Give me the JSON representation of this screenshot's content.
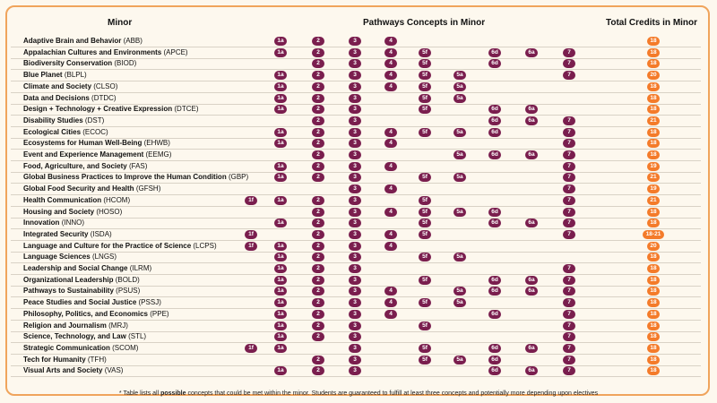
{
  "headers": {
    "minor": "Minor",
    "concepts": "Pathways Concepts in Minor",
    "credits": "Total Credits in Minor"
  },
  "rows": [
    {
      "name": "Adaptive Brain and Behavior",
      "abbr": "(ABB)",
      "concepts": [
        "1a",
        "2",
        "3",
        "4"
      ],
      "credits": "18"
    },
    {
      "name": "Appalachian Cultures and Environments",
      "abbr": "(APCE)",
      "concepts": [
        "1a",
        "2",
        "3",
        "4",
        "5f",
        "6d",
        "6a",
        "7"
      ],
      "credits": "18"
    },
    {
      "name": "Biodiversity Conservation",
      "abbr": "(BIOD)",
      "concepts": [
        "2",
        "3",
        "4",
        "5f",
        "6d",
        "7"
      ],
      "credits": "18"
    },
    {
      "name": "Blue Planet",
      "abbr": "(BLPL)",
      "concepts": [
        "1a",
        "2",
        "3",
        "4",
        "5f",
        "5a",
        "7"
      ],
      "credits": "20"
    },
    {
      "name": "Climate and Society",
      "abbr": "(CLSO)",
      "concepts": [
        "1a",
        "2",
        "3",
        "4",
        "5f",
        "5a"
      ],
      "credits": "18"
    },
    {
      "name": "Data and Decisions",
      "abbr": "(DTDC)",
      "concepts": [
        "1a",
        "2",
        "3",
        "5f",
        "5a"
      ],
      "credits": "18"
    },
    {
      "name": "Design + Technology + Creative Expression",
      "abbr": "(DTCE)",
      "concepts": [
        "1a",
        "2",
        "3",
        "5f",
        "6d",
        "6a"
      ],
      "credits": "18"
    },
    {
      "name": "Disability Studies",
      "abbr": "(DST)",
      "concepts": [
        "2",
        "3",
        "6d",
        "6a",
        "7"
      ],
      "credits": "21"
    },
    {
      "name": "Ecological Cities",
      "abbr": "(ECOC)",
      "concepts": [
        "1a",
        "2",
        "3",
        "4",
        "5f",
        "5a",
        "6d",
        "7"
      ],
      "credits": "18"
    },
    {
      "name": "Ecosystems for Human Well-Being",
      "abbr": "(EHWB)",
      "concepts": [
        "1a",
        "2",
        "3",
        "4",
        "7"
      ],
      "credits": "18"
    },
    {
      "name": "Event and Experience Management",
      "abbr": "(EEMG)",
      "concepts": [
        "2",
        "3",
        "5a",
        "6d",
        "6a",
        "7"
      ],
      "credits": "18"
    },
    {
      "name": "Food, Agriculture, and Society",
      "abbr": "(FAS)",
      "concepts": [
        "1a",
        "2",
        "3",
        "4",
        "7"
      ],
      "credits": "19"
    },
    {
      "name": "Global Business Practices to Improve the Human Condition",
      "abbr": "(GBP)",
      "concepts": [
        "1a",
        "2",
        "3",
        "5f",
        "5a",
        "7"
      ],
      "credits": "21"
    },
    {
      "name": "Global Food Security and Health",
      "abbr": "(GFSH)",
      "concepts": [
        "3",
        "4",
        "7"
      ],
      "credits": "19"
    },
    {
      "name": "Health Communication",
      "abbr": "(HCOM)",
      "concepts": [
        "1f",
        "1a",
        "2",
        "3",
        "5f",
        "7"
      ],
      "credits": "21"
    },
    {
      "name": "Housing and Society",
      "abbr": "(HOSO)",
      "concepts": [
        "2",
        "3",
        "4",
        "5f",
        "5a",
        "6d",
        "7"
      ],
      "credits": "18"
    },
    {
      "name": "Innovation",
      "abbr": " (INNO)",
      "concepts": [
        "1a",
        "2",
        "3",
        "5f",
        "6d",
        "6a",
        "7"
      ],
      "credits": "18"
    },
    {
      "name": "Integrated Security",
      "abbr": "(ISDA)",
      "concepts": [
        "1f",
        "2",
        "3",
        "4",
        "5f",
        "7"
      ],
      "credits": "18-21"
    },
    {
      "name": "Language and Culture for the Practice of Science",
      "abbr": "(LCPS)",
      "concepts": [
        "1f",
        "1a",
        "2",
        "3",
        "4"
      ],
      "credits": "20"
    },
    {
      "name": "Language Sciences",
      "abbr": "(LNGS)",
      "concepts": [
        "1a",
        "2",
        "3",
        "5f",
        "5a"
      ],
      "credits": "18"
    },
    {
      "name": "Leadership and Social Change",
      "abbr": "(ILRM)",
      "concepts": [
        "1a",
        "2",
        "3",
        "7"
      ],
      "credits": "18"
    },
    {
      "name": "Organizational Leadership",
      "abbr": "(BOLD)",
      "concepts": [
        "1a",
        "2",
        "3",
        "5f",
        "6d",
        "6a",
        "7"
      ],
      "credits": "18"
    },
    {
      "name": "Pathways to Sustainability",
      "abbr": "(PSUS)",
      "concepts": [
        "1a",
        "2",
        "3",
        "4",
        "5a",
        "6d",
        "6a",
        "7"
      ],
      "credits": "18"
    },
    {
      "name": "Peace Studies and Social Justice",
      "abbr": "(PSSJ)",
      "concepts": [
        "1a",
        "2",
        "3",
        "4",
        "5f",
        "5a",
        "7"
      ],
      "credits": "18"
    },
    {
      "name": "Philosophy, Politics, and Economics",
      "abbr": "(PPE)",
      "concepts": [
        "1a",
        "2",
        "3",
        "4",
        "6d",
        "7"
      ],
      "credits": "18"
    },
    {
      "name": "Religion and Journalism",
      "abbr": "(MRJ)",
      "concepts": [
        "1a",
        "2",
        "3",
        "5f",
        "7"
      ],
      "credits": "18"
    },
    {
      "name": "Science, Technology, and Law",
      "abbr": "(STL)",
      "concepts": [
        "1a",
        "2",
        "3",
        "7"
      ],
      "credits": "18"
    },
    {
      "name": "Strategic Communication",
      "abbr": "(SCOM)",
      "concepts": [
        "1f",
        "1a",
        "3",
        "5f",
        "6d",
        "6a",
        "7"
      ],
      "credits": "18"
    },
    {
      "name": "Tech for Humanity",
      "abbr": "(TFH)",
      "concepts": [
        "2",
        "3",
        "5f",
        "5a",
        "6d",
        "7"
      ],
      "credits": "18"
    },
    {
      "name": "Visual Arts and Society",
      "abbr": "(VAS)",
      "concepts": [
        "1a",
        "2",
        "3",
        "6d",
        "6a",
        "7"
      ],
      "credits": "18"
    }
  ],
  "footnote": {
    "star": "*",
    "pre": "Table lists all",
    "bold": "possible",
    "post": "concepts that could be met within the minor. Students are guaranteed to fulfill at least three concepts and potentially more depending upon electives"
  },
  "colors": {
    "concept": "#7a1e4e",
    "credits": "#f47b2a",
    "border": "#f0a45c"
  }
}
